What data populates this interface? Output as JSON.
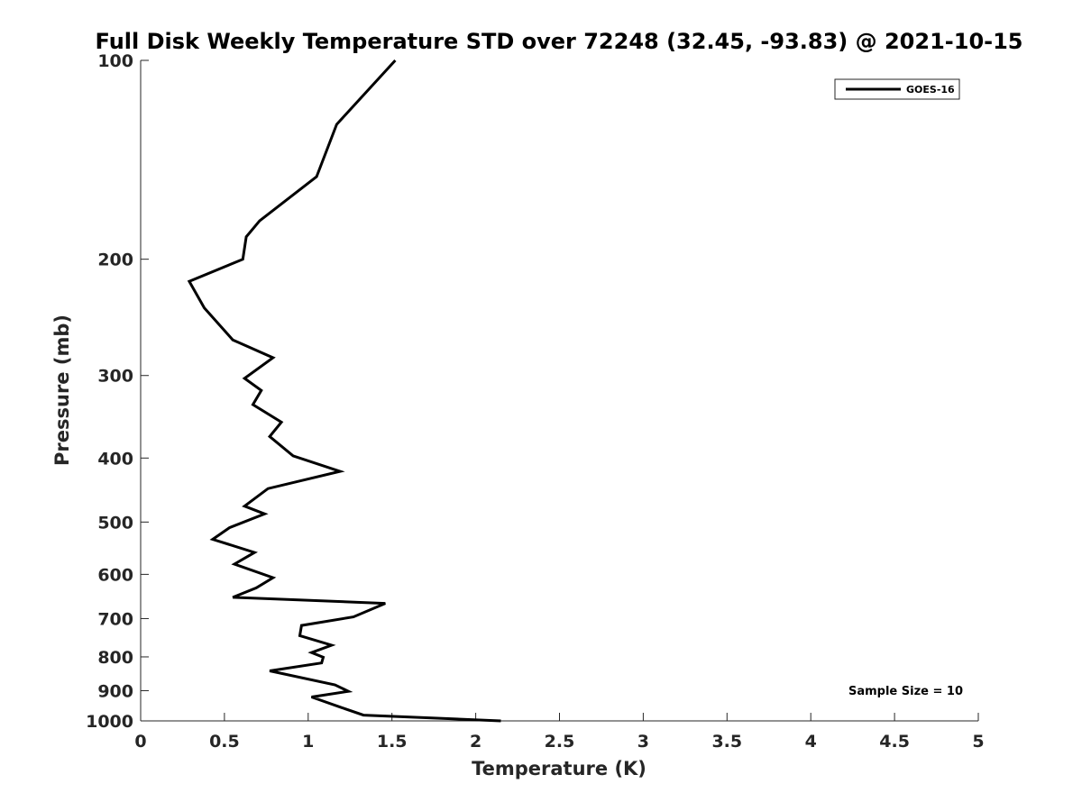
{
  "chart_data": {
    "type": "line",
    "title": "Full Disk Weekly Temperature STD over 72248 (32.45, -93.83) @ 2021-10-15",
    "xlabel": "Temperature (K)",
    "ylabel": "Pressure (mb)",
    "xlim": [
      0,
      5
    ],
    "ylim": [
      100,
      1000
    ],
    "y_scale": "log",
    "y_reversed": true,
    "x_ticks": [
      0,
      0.5,
      1,
      1.5,
      2,
      2.5,
      3,
      3.5,
      4,
      4.5,
      5
    ],
    "x_tick_labels": [
      "0",
      "0.5",
      "1",
      "1.5",
      "2",
      "2.5",
      "3",
      "3.5",
      "4",
      "4.5",
      "5"
    ],
    "y_ticks": [
      100,
      200,
      300,
      400,
      500,
      600,
      700,
      800,
      900,
      1000
    ],
    "y_tick_labels": [
      "100",
      "200",
      "300",
      "400",
      "500",
      "600",
      "700",
      "800",
      "900",
      "1000"
    ],
    "grid": false,
    "legend_position": "top-right",
    "annotation": "Sample Size = 10",
    "series": [
      {
        "name": "GOES-16",
        "color": "#000000",
        "points": [
          [
            1.52,
            100
          ],
          [
            1.17,
            125
          ],
          [
            1.05,
            150
          ],
          [
            0.71,
            175
          ],
          [
            0.63,
            185
          ],
          [
            0.61,
            200
          ],
          [
            0.29,
            216
          ],
          [
            0.38,
            237
          ],
          [
            0.55,
            265
          ],
          [
            0.79,
            282
          ],
          [
            0.62,
            303
          ],
          [
            0.72,
            316
          ],
          [
            0.67,
            332
          ],
          [
            0.84,
            353
          ],
          [
            0.77,
            371
          ],
          [
            0.91,
            397
          ],
          [
            1.19,
            419
          ],
          [
            0.76,
            445
          ],
          [
            0.62,
            473
          ],
          [
            0.74,
            486
          ],
          [
            0.53,
            510
          ],
          [
            0.43,
            531
          ],
          [
            0.68,
            556
          ],
          [
            0.56,
            579
          ],
          [
            0.79,
            607
          ],
          [
            0.69,
            629
          ],
          [
            0.55,
            650
          ],
          [
            1.46,
            664
          ],
          [
            1.27,
            696
          ],
          [
            0.96,
            717
          ],
          [
            0.95,
            743
          ],
          [
            1.14,
            768
          ],
          [
            1.02,
            788
          ],
          [
            1.09,
            801
          ],
          [
            1.08,
            817
          ],
          [
            0.77,
            840
          ],
          [
            1.16,
            882
          ],
          [
            1.24,
            902
          ],
          [
            1.02,
            920
          ],
          [
            1.2,
            955
          ],
          [
            1.33,
            980
          ],
          [
            2.15,
            1000
          ]
        ]
      }
    ]
  }
}
